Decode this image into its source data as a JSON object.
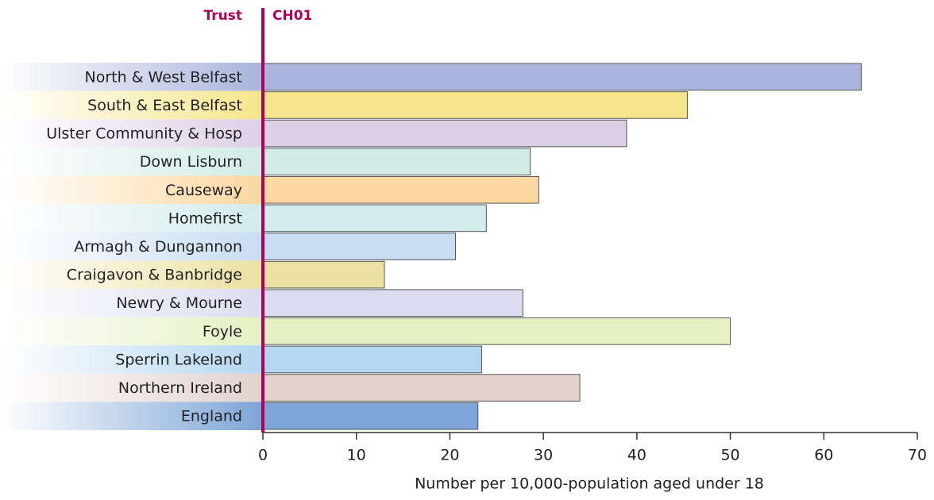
{
  "chart_data": {
    "type": "bar",
    "orientation": "horizontal",
    "y_header": "Trust",
    "title": "CH01",
    "x_label": "Number per 10,000-population aged under 18",
    "categories": [
      "North & West Belfast",
      "South & East Belfast",
      "Ulster Community & Hosp",
      "Down Lisburn",
      "Causeway",
      "Homefirst",
      "Armagh & Dungannon",
      "Craigavon & Banbridge",
      "Newry & Mourne",
      "Foyle",
      "Sperrin Lakeland",
      "Northern Ireland",
      "England"
    ],
    "values": [
      64.0,
      45.4,
      38.9,
      28.6,
      29.5,
      23.9,
      20.6,
      13.0,
      27.8,
      50.0,
      23.4,
      33.9,
      23.0
    ],
    "colors": [
      "#aab4dc",
      "#f5e68c",
      "#dcd0e6",
      "#d2ebe6",
      "#fcd7a0",
      "#d2ebeb",
      "#c8dcf2",
      "#ebe1a0",
      "#dcdcf0",
      "#e6f0c3",
      "#b4d7f0",
      "#e1d2cd",
      "#7ea5d7"
    ],
    "xlim": [
      0,
      70
    ],
    "xticks": [
      0,
      10,
      20,
      30,
      40,
      50,
      60,
      70
    ]
  }
}
